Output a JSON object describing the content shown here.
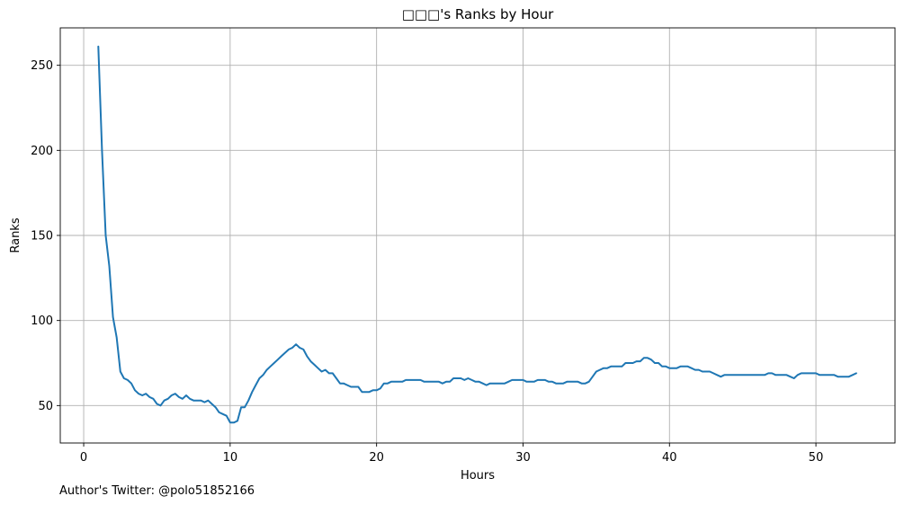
{
  "chart_data": {
    "type": "line",
    "title": "□□□'s Ranks by Hour",
    "xlabel": "Hours",
    "ylabel": "Ranks",
    "xlim": [
      -1.6,
      55.4
    ],
    "ylim": [
      28,
      272
    ],
    "xticks": [
      0,
      10,
      20,
      30,
      40,
      50
    ],
    "yticks": [
      50,
      100,
      150,
      200,
      250
    ],
    "grid": true,
    "line_color": "#1f77b4",
    "series": [
      {
        "points": [
          [
            1.0,
            261
          ],
          [
            1.25,
            200
          ],
          [
            1.5,
            150
          ],
          [
            1.75,
            132
          ],
          [
            2.0,
            102
          ],
          [
            2.25,
            90
          ],
          [
            2.5,
            70
          ],
          [
            2.75,
            66
          ],
          [
            3.0,
            65
          ],
          [
            3.25,
            63
          ],
          [
            3.5,
            59
          ],
          [
            3.75,
            57
          ],
          [
            4.0,
            56
          ],
          [
            4.25,
            57
          ],
          [
            4.5,
            55
          ],
          [
            4.75,
            54
          ],
          [
            5.0,
            51
          ],
          [
            5.25,
            50
          ],
          [
            5.5,
            53
          ],
          [
            5.75,
            54
          ],
          [
            6.0,
            56
          ],
          [
            6.25,
            57
          ],
          [
            6.5,
            55
          ],
          [
            6.75,
            54
          ],
          [
            7.0,
            56
          ],
          [
            7.25,
            54
          ],
          [
            7.5,
            53
          ],
          [
            7.75,
            53
          ],
          [
            8.0,
            53
          ],
          [
            8.25,
            52
          ],
          [
            8.5,
            53
          ],
          [
            8.75,
            51
          ],
          [
            9.0,
            49
          ],
          [
            9.25,
            46
          ],
          [
            9.5,
            45
          ],
          [
            9.75,
            44
          ],
          [
            10.0,
            40
          ],
          [
            10.25,
            40
          ],
          [
            10.5,
            41
          ],
          [
            10.75,
            49
          ],
          [
            11.0,
            49
          ],
          [
            11.25,
            53
          ],
          [
            11.5,
            58
          ],
          [
            11.75,
            62
          ],
          [
            12.0,
            66
          ],
          [
            12.25,
            68
          ],
          [
            12.5,
            71
          ],
          [
            12.75,
            73
          ],
          [
            13.0,
            75
          ],
          [
            13.25,
            77
          ],
          [
            13.5,
            79
          ],
          [
            13.75,
            81
          ],
          [
            14.0,
            83
          ],
          [
            14.25,
            84
          ],
          [
            14.5,
            86
          ],
          [
            14.75,
            84
          ],
          [
            15.0,
            83
          ],
          [
            15.25,
            79
          ],
          [
            15.5,
            76
          ],
          [
            15.75,
            74
          ],
          [
            16.0,
            72
          ],
          [
            16.25,
            70
          ],
          [
            16.5,
            71
          ],
          [
            16.75,
            69
          ],
          [
            17.0,
            69
          ],
          [
            17.25,
            66
          ],
          [
            17.5,
            63
          ],
          [
            17.75,
            63
          ],
          [
            18.0,
            62
          ],
          [
            18.25,
            61
          ],
          [
            18.5,
            61
          ],
          [
            18.75,
            61
          ],
          [
            19.0,
            58
          ],
          [
            19.25,
            58
          ],
          [
            19.5,
            58
          ],
          [
            19.75,
            59
          ],
          [
            20.0,
            59
          ],
          [
            20.25,
            60
          ],
          [
            20.5,
            63
          ],
          [
            20.75,
            63
          ],
          [
            21.0,
            64
          ],
          [
            21.25,
            64
          ],
          [
            21.5,
            64
          ],
          [
            21.75,
            64
          ],
          [
            22.0,
            65
          ],
          [
            22.25,
            65
          ],
          [
            22.5,
            65
          ],
          [
            22.75,
            65
          ],
          [
            23.0,
            65
          ],
          [
            23.25,
            64
          ],
          [
            23.5,
            64
          ],
          [
            23.75,
            64
          ],
          [
            24.0,
            64
          ],
          [
            24.25,
            64
          ],
          [
            24.5,
            63
          ],
          [
            24.75,
            64
          ],
          [
            25.0,
            64
          ],
          [
            25.25,
            66
          ],
          [
            25.5,
            66
          ],
          [
            25.75,
            66
          ],
          [
            26.0,
            65
          ],
          [
            26.25,
            66
          ],
          [
            26.5,
            65
          ],
          [
            26.75,
            64
          ],
          [
            27.0,
            64
          ],
          [
            27.25,
            63
          ],
          [
            27.5,
            62
          ],
          [
            27.75,
            63
          ],
          [
            28.0,
            63
          ],
          [
            28.25,
            63
          ],
          [
            28.5,
            63
          ],
          [
            28.75,
            63
          ],
          [
            29.0,
            64
          ],
          [
            29.25,
            65
          ],
          [
            29.5,
            65
          ],
          [
            29.75,
            65
          ],
          [
            30.0,
            65
          ],
          [
            30.25,
            64
          ],
          [
            30.5,
            64
          ],
          [
            30.75,
            64
          ],
          [
            31.0,
            65
          ],
          [
            31.25,
            65
          ],
          [
            31.5,
            65
          ],
          [
            31.75,
            64
          ],
          [
            32.0,
            64
          ],
          [
            32.25,
            63
          ],
          [
            32.5,
            63
          ],
          [
            32.75,
            63
          ],
          [
            33.0,
            64
          ],
          [
            33.25,
            64
          ],
          [
            33.5,
            64
          ],
          [
            33.75,
            64
          ],
          [
            34.0,
            63
          ],
          [
            34.25,
            63
          ],
          [
            34.5,
            64
          ],
          [
            34.75,
            67
          ],
          [
            35.0,
            70
          ],
          [
            35.25,
            71
          ],
          [
            35.5,
            72
          ],
          [
            35.75,
            72
          ],
          [
            36.0,
            73
          ],
          [
            36.25,
            73
          ],
          [
            36.5,
            73
          ],
          [
            36.75,
            73
          ],
          [
            37.0,
            75
          ],
          [
            37.25,
            75
          ],
          [
            37.5,
            75
          ],
          [
            37.75,
            76
          ],
          [
            38.0,
            76
          ],
          [
            38.25,
            78
          ],
          [
            38.5,
            78
          ],
          [
            38.75,
            77
          ],
          [
            39.0,
            75
          ],
          [
            39.25,
            75
          ],
          [
            39.5,
            73
          ],
          [
            39.75,
            73
          ],
          [
            40.0,
            72
          ],
          [
            40.25,
            72
          ],
          [
            40.5,
            72
          ],
          [
            40.75,
            73
          ],
          [
            41.0,
            73
          ],
          [
            41.25,
            73
          ],
          [
            41.5,
            72
          ],
          [
            41.75,
            71
          ],
          [
            42.0,
            71
          ],
          [
            42.25,
            70
          ],
          [
            42.5,
            70
          ],
          [
            42.75,
            70
          ],
          [
            43.0,
            69
          ],
          [
            43.25,
            68
          ],
          [
            43.5,
            67
          ],
          [
            43.75,
            68
          ],
          [
            44.0,
            68
          ],
          [
            44.25,
            68
          ],
          [
            44.5,
            68
          ],
          [
            44.75,
            68
          ],
          [
            45.0,
            68
          ],
          [
            45.25,
            68
          ],
          [
            45.5,
            68
          ],
          [
            45.75,
            68
          ],
          [
            46.0,
            68
          ],
          [
            46.25,
            68
          ],
          [
            46.5,
            68
          ],
          [
            46.75,
            69
          ],
          [
            47.0,
            69
          ],
          [
            47.25,
            68
          ],
          [
            47.5,
            68
          ],
          [
            47.75,
            68
          ],
          [
            48.0,
            68
          ],
          [
            48.25,
            67
          ],
          [
            48.5,
            66
          ],
          [
            48.75,
            68
          ],
          [
            49.0,
            69
          ],
          [
            49.25,
            69
          ],
          [
            49.5,
            69
          ],
          [
            49.75,
            69
          ],
          [
            50.0,
            69
          ],
          [
            50.25,
            68
          ],
          [
            50.5,
            68
          ],
          [
            50.75,
            68
          ],
          [
            51.0,
            68
          ],
          [
            51.25,
            68
          ],
          [
            51.5,
            67
          ],
          [
            51.75,
            67
          ],
          [
            52.0,
            67
          ],
          [
            52.25,
            67
          ],
          [
            52.5,
            68
          ],
          [
            52.75,
            69
          ]
        ]
      }
    ]
  },
  "footer": {
    "credit": "Author's Twitter: @polo51852166"
  }
}
